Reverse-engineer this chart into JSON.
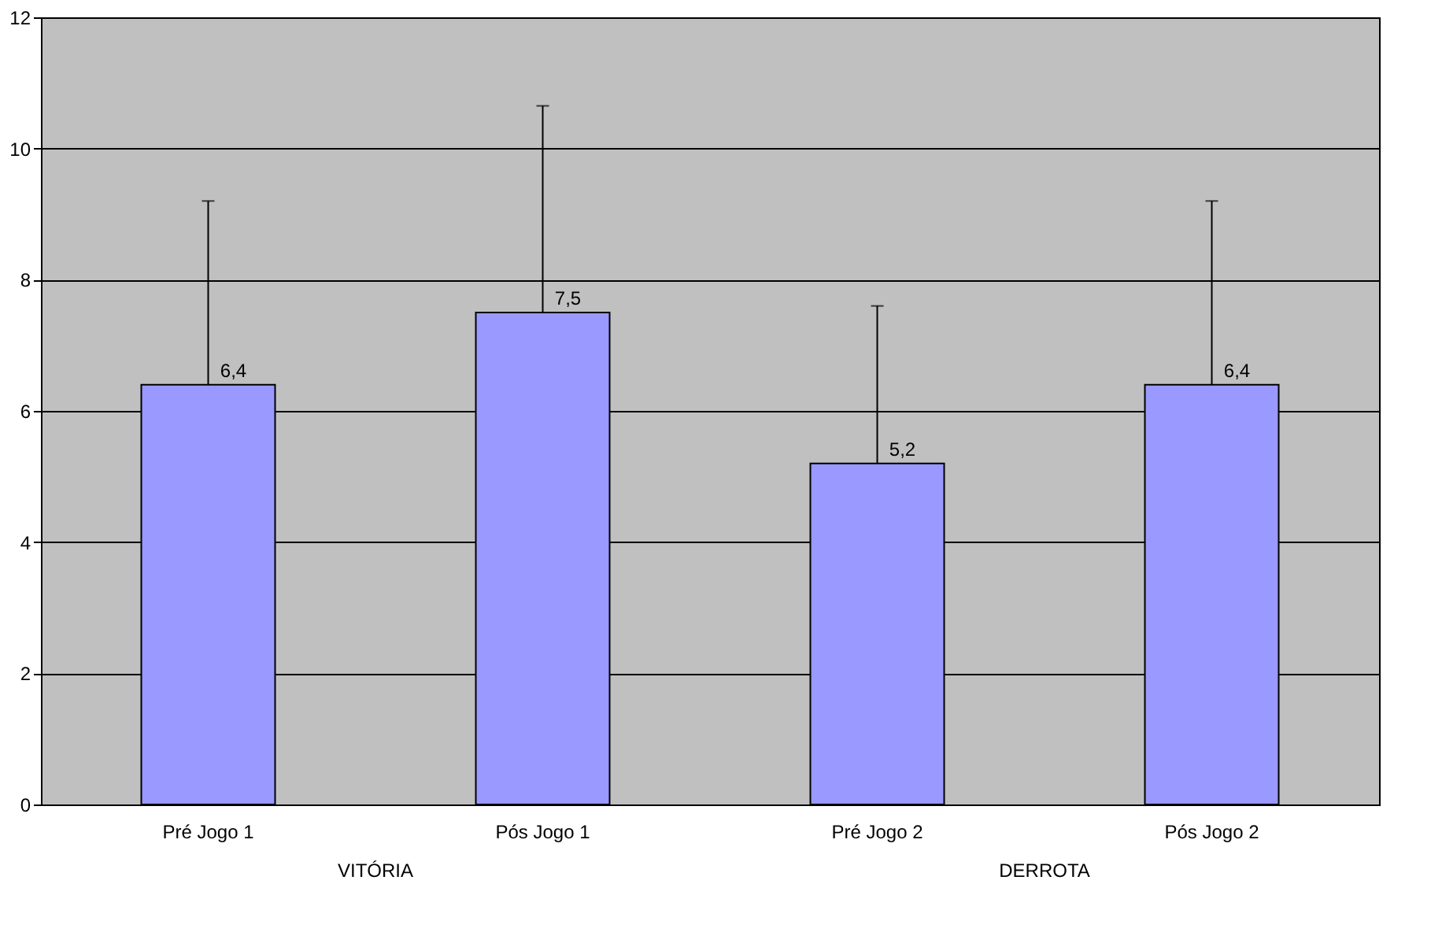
{
  "chart_data": {
    "type": "bar",
    "categories": [
      "Pré Jogo 1",
      "Pós Jogo 1",
      "Pré Jogo 2",
      "Pós Jogo 2"
    ],
    "values": [
      6.4,
      7.5,
      5.2,
      6.4
    ],
    "value_labels": [
      "6,4",
      "7,5",
      "5,2",
      "6,4"
    ],
    "errors": [
      [
        6.4,
        9.2
      ],
      [
        7.5,
        10.65
      ],
      [
        5.2,
        7.6
      ],
      [
        6.4,
        9.2
      ]
    ],
    "color": "#9999ff",
    "ylim": [
      0,
      12
    ],
    "yticks": [
      0,
      2,
      4,
      6,
      8,
      10,
      12
    ],
    "grid": "y",
    "annotations": [
      "VITÓRIA",
      "DERROTA"
    ]
  }
}
